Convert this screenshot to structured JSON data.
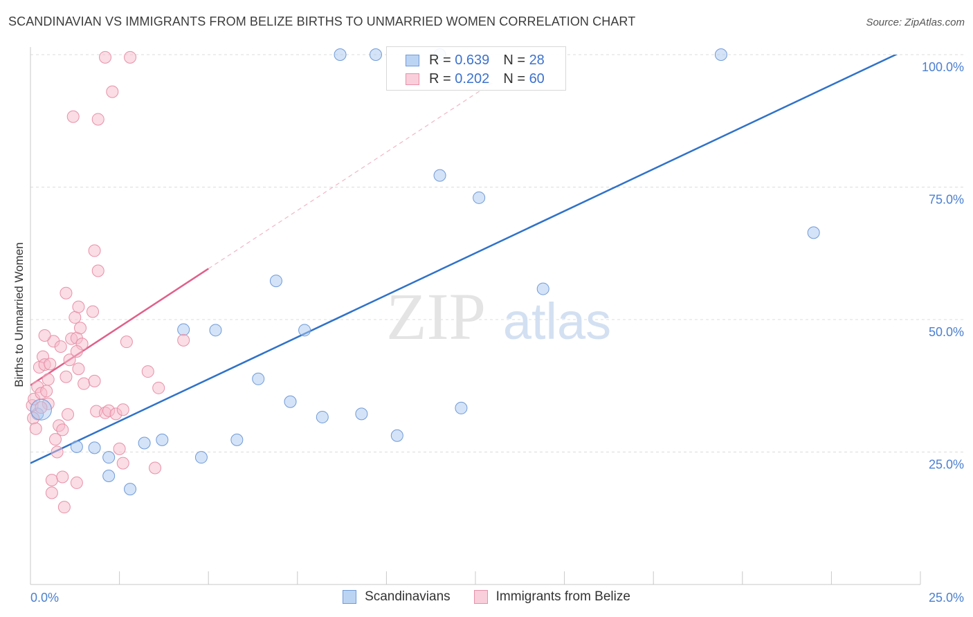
{
  "title": "SCANDINAVIAN VS IMMIGRANTS FROM BELIZE BIRTHS TO UNMARRIED WOMEN CORRELATION CHART",
  "source": "Source: ZipAtlas.com",
  "watermark": {
    "zip": "ZIP",
    "atlas": "atlas"
  },
  "legend": {
    "rows": [
      {
        "r_label": "R =",
        "r_value": "0.639",
        "n_label": "N =",
        "n_value": "28"
      },
      {
        "r_label": "R =",
        "r_value": "0.202",
        "n_label": "N =",
        "n_value": "60"
      }
    ]
  },
  "chart_data": {
    "type": "scatter",
    "title": "SCANDINAVIAN VS IMMIGRANTS FROM BELIZE BIRTHS TO UNMARRIED WOMEN CORRELATION CHART",
    "xlabel": "",
    "ylabel": "Births to Unmarried Women",
    "xlim": [
      0,
      25
    ],
    "ylim": [
      0,
      100
    ],
    "x_tick_labels": [
      "0.0%",
      "25.0%"
    ],
    "y_ticks": [
      25,
      50,
      75,
      100
    ],
    "y_tick_labels": [
      "25.0%",
      "50.0%",
      "75.0%",
      "100.0%"
    ],
    "grid": true,
    "legend_position": "top-center",
    "series": [
      {
        "name": "Scandinavians",
        "color": "#a9c7ef",
        "stroke": "#6f9ad8",
        "line_color": "#2f72c8",
        "trend": {
          "x": [
            0,
            25
          ],
          "y": [
            22.9,
            102.2
          ]
        },
        "points": [
          {
            "x": 0.2,
            "y": 32.2
          },
          {
            "x": 1.3,
            "y": 26
          },
          {
            "x": 1.8,
            "y": 25.8
          },
          {
            "x": 2.2,
            "y": 24
          },
          {
            "x": 2.2,
            "y": 20.5
          },
          {
            "x": 2.8,
            "y": 18
          },
          {
            "x": 3.2,
            "y": 26.7
          },
          {
            "x": 3.7,
            "y": 27.3
          },
          {
            "x": 4.3,
            "y": 48.1
          },
          {
            "x": 4.8,
            "y": 24
          },
          {
            "x": 5.2,
            "y": 48
          },
          {
            "x": 5.8,
            "y": 27.3
          },
          {
            "x": 6.4,
            "y": 38.8
          },
          {
            "x": 6.9,
            "y": 57.3
          },
          {
            "x": 7.3,
            "y": 34.5
          },
          {
            "x": 7.7,
            "y": 48
          },
          {
            "x": 8.2,
            "y": 31.6
          },
          {
            "x": 8.7,
            "y": 100
          },
          {
            "x": 9.3,
            "y": 32.2
          },
          {
            "x": 9.7,
            "y": 100
          },
          {
            "x": 10.3,
            "y": 28.1
          },
          {
            "x": 11.5,
            "y": 100
          },
          {
            "x": 11.5,
            "y": 77.2
          },
          {
            "x": 12.1,
            "y": 33.3
          },
          {
            "x": 12.6,
            "y": 73
          },
          {
            "x": 14.4,
            "y": 55.8
          },
          {
            "x": 19.4,
            "y": 100
          },
          {
            "x": 22.0,
            "y": 66.4
          }
        ]
      },
      {
        "name": "Immigrants from Belize",
        "color": "#f6bccb",
        "stroke": "#e890a8",
        "line_color": "#e0608a",
        "trend": {
          "x": [
            0,
            5
          ],
          "y": [
            37.6,
            59.6
          ]
        },
        "trend_ext": {
          "x": [
            5,
            13
          ],
          "y": [
            59.6,
            94.8
          ]
        },
        "points": [
          {
            "x": 0.05,
            "y": 33.8
          },
          {
            "x": 0.08,
            "y": 31.4
          },
          {
            "x": 0.1,
            "y": 35
          },
          {
            "x": 0.15,
            "y": 29.4
          },
          {
            "x": 0.2,
            "y": 37.3
          },
          {
            "x": 0.25,
            "y": 41
          },
          {
            "x": 0.3,
            "y": 36.1
          },
          {
            "x": 0.35,
            "y": 43
          },
          {
            "x": 0.4,
            "y": 41.5
          },
          {
            "x": 0.45,
            "y": 36.5
          },
          {
            "x": 0.5,
            "y": 34.1
          },
          {
            "x": 0.5,
            "y": 38.7
          },
          {
            "x": 0.55,
            "y": 41.6
          },
          {
            "x": 0.6,
            "y": 19.7
          },
          {
            "x": 0.6,
            "y": 17.3
          },
          {
            "x": 0.65,
            "y": 45.9
          },
          {
            "x": 0.7,
            "y": 27.4
          },
          {
            "x": 0.75,
            "y": 25
          },
          {
            "x": 0.8,
            "y": 30
          },
          {
            "x": 0.85,
            "y": 44.9
          },
          {
            "x": 0.9,
            "y": 20.3
          },
          {
            "x": 0.95,
            "y": 14.6
          },
          {
            "x": 1.0,
            "y": 39.2
          },
          {
            "x": 1.0,
            "y": 55
          },
          {
            "x": 1.05,
            "y": 32.1
          },
          {
            "x": 1.1,
            "y": 42.4
          },
          {
            "x": 1.15,
            "y": 46.4
          },
          {
            "x": 1.2,
            "y": 88.3
          },
          {
            "x": 1.25,
            "y": 50.4
          },
          {
            "x": 1.3,
            "y": 46.5
          },
          {
            "x": 1.3,
            "y": 19.2
          },
          {
            "x": 1.35,
            "y": 52.4
          },
          {
            "x": 1.4,
            "y": 48.4
          },
          {
            "x": 1.45,
            "y": 45.4
          },
          {
            "x": 1.5,
            "y": 37.9
          },
          {
            "x": 1.3,
            "y": 44
          },
          {
            "x": 1.35,
            "y": 40.7
          },
          {
            "x": 1.75,
            "y": 51.5
          },
          {
            "x": 1.8,
            "y": 63
          },
          {
            "x": 1.85,
            "y": 32.7
          },
          {
            "x": 1.9,
            "y": 87.8
          },
          {
            "x": 1.9,
            "y": 59.2
          },
          {
            "x": 1.8,
            "y": 38.4
          },
          {
            "x": 2.1,
            "y": 32.4
          },
          {
            "x": 2.1,
            "y": 99.5
          },
          {
            "x": 2.2,
            "y": 32.8
          },
          {
            "x": 2.3,
            "y": 93
          },
          {
            "x": 2.4,
            "y": 32.2
          },
          {
            "x": 2.5,
            "y": 25.6
          },
          {
            "x": 2.6,
            "y": 22.9
          },
          {
            "x": 2.6,
            "y": 33
          },
          {
            "x": 2.7,
            "y": 45.8
          },
          {
            "x": 2.8,
            "y": 99.5
          },
          {
            "x": 3.3,
            "y": 40.2
          },
          {
            "x": 3.5,
            "y": 22
          },
          {
            "x": 3.6,
            "y": 37.1
          },
          {
            "x": 4.3,
            "y": 46.1
          },
          {
            "x": 0.4,
            "y": 47
          },
          {
            "x": 0.3,
            "y": 33.4
          },
          {
            "x": 0.9,
            "y": 29.2
          }
        ]
      }
    ]
  },
  "bottom_legend": [
    "Scandinavians",
    "Immigrants from Belize"
  ]
}
